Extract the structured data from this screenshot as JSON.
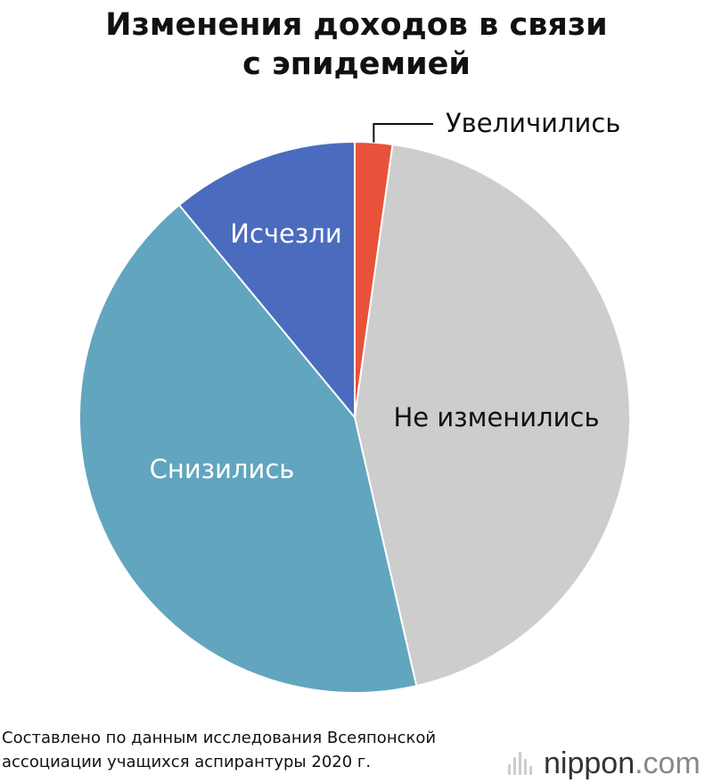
{
  "title_lines": [
    "Изменения доходов в связи",
    "с эпидемией"
  ],
  "chart_data": {
    "type": "pie",
    "title": "Изменения доходов в связи с эпидемией",
    "start_angle_deg": 0,
    "direction": "clockwise",
    "slices": [
      {
        "label": "Увеличились",
        "value": 2.2,
        "color": "#e8513a",
        "label_color": "#111111",
        "label_placement": "outside-callout"
      },
      {
        "label": "Не изменились",
        "value": 44.2,
        "color": "#cdcdcd",
        "label_color": "#111111",
        "label_placement": "inside"
      },
      {
        "label": "Снизились",
        "value": 42.6,
        "color": "#61a5bf",
        "label_color": "#ffffff",
        "label_placement": "inside"
      },
      {
        "label": "Исчезли",
        "value": 11.0,
        "color": "#4b6bbf",
        "label_color": "#ffffff",
        "label_placement": "inside"
      }
    ]
  },
  "source_lines": [
    "Составлено по данным исследования Всеяпонской",
    "ассоциации учащихся аспирантуры 2020 г."
  ],
  "logo": {
    "name": "nippon",
    "suffix": ".com"
  }
}
